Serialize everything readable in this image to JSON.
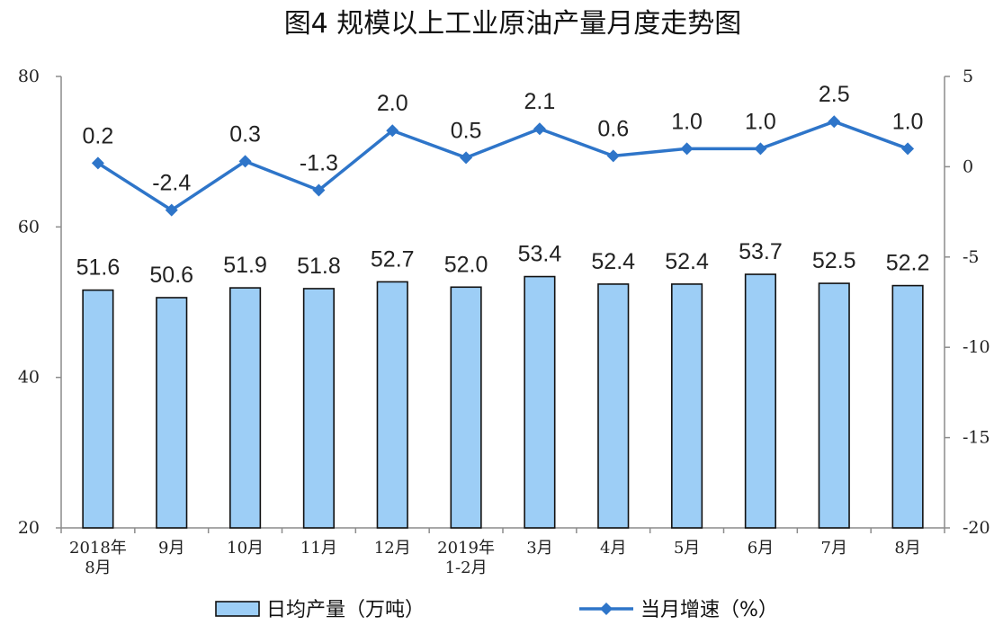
{
  "chart_data": {
    "type": "bar",
    "title": "图4  规模以上工业原油产量月度走势图",
    "categories": [
      [
        "2018年",
        "8月"
      ],
      [
        "9月"
      ],
      [
        "10月"
      ],
      [
        "11月"
      ],
      [
        "12月"
      ],
      [
        "2019年",
        "1-2月"
      ],
      [
        "3月"
      ],
      [
        "4月"
      ],
      [
        "5月"
      ],
      [
        "6月"
      ],
      [
        "7月"
      ],
      [
        "8月"
      ]
    ],
    "series": [
      {
        "name": "日均产量（万吨）",
        "type": "bar",
        "axis": "left",
        "values": [
          51.6,
          50.6,
          51.9,
          51.8,
          52.7,
          52.0,
          53.4,
          52.4,
          52.4,
          53.7,
          52.5,
          52.2
        ],
        "labels": [
          "51.6",
          "50.6",
          "51.9",
          "51.8",
          "52.7",
          "52.0",
          "53.4",
          "52.4",
          "52.4",
          "53.7",
          "52.5",
          "52.2"
        ],
        "color": "#9DCEF6"
      },
      {
        "name": "当月增速（%）",
        "type": "line",
        "axis": "right",
        "values": [
          0.2,
          -2.4,
          0.3,
          -1.3,
          2.0,
          0.5,
          2.1,
          0.6,
          1.0,
          1.0,
          2.5,
          1.0
        ],
        "labels": [
          "0.2",
          "-2.4",
          "0.3",
          "-1.3",
          "2.0",
          "0.5",
          "2.1",
          "0.6",
          "1.0",
          "1.0",
          "2.5",
          "1.0"
        ],
        "color": "#2E75C9",
        "marker": "diamond"
      }
    ],
    "y_left": {
      "min": 20,
      "max": 80,
      "ticks": [
        "20",
        "40",
        "60",
        "80"
      ]
    },
    "y_right": {
      "min": -20,
      "max": 5,
      "ticks": [
        "-20",
        "-15",
        "-10",
        "-5",
        "0",
        "5"
      ]
    },
    "grid": false,
    "legend_position": "bottom"
  }
}
